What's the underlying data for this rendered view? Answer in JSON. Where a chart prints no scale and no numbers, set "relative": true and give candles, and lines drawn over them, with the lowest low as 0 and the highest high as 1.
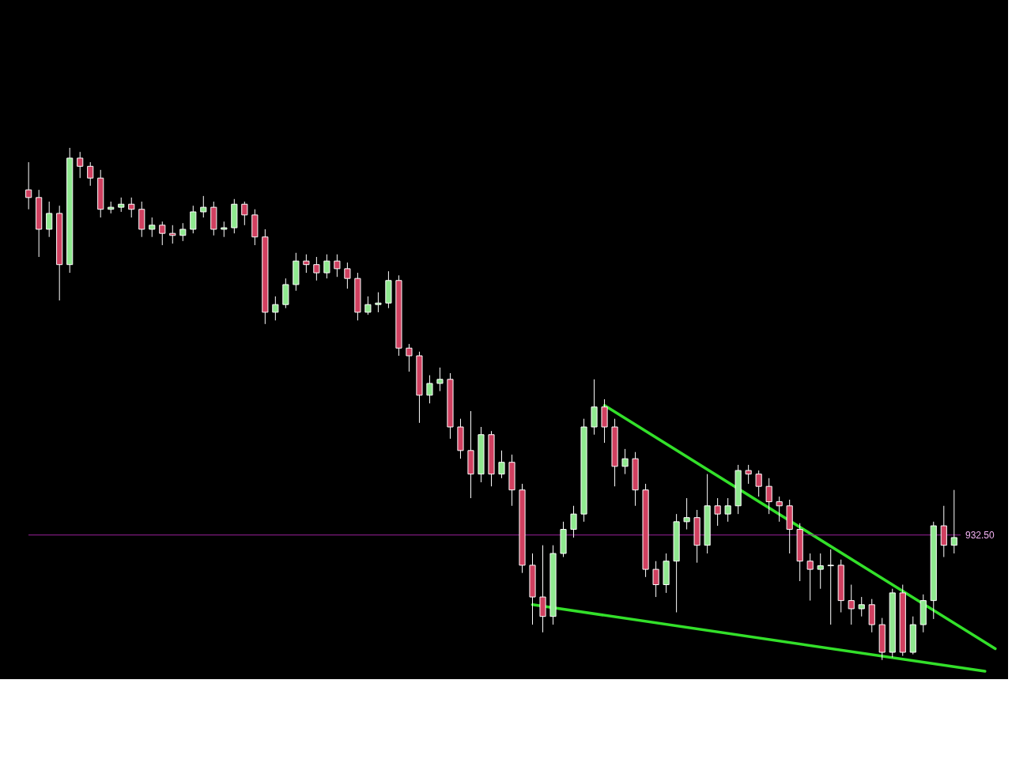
{
  "chart_data": {
    "type": "candlestick",
    "relative": true,
    "tick_labels": false,
    "categories": [
      null,
      null,
      null,
      null,
      null,
      null,
      null,
      null,
      null,
      null,
      null,
      null,
      null,
      null,
      null,
      null,
      null,
      null,
      null,
      null,
      null,
      null,
      null,
      null,
      null,
      null,
      null,
      null,
      null,
      null,
      null,
      null,
      null,
      null,
      null,
      null,
      null,
      null,
      null,
      null,
      null,
      null,
      null,
      null,
      null,
      null,
      null,
      null,
      null,
      null,
      null,
      null,
      null,
      null,
      null,
      null,
      null,
      null,
      null,
      null,
      null,
      null,
      null,
      null,
      null,
      null,
      null,
      null,
      null,
      null,
      null,
      null,
      null,
      null,
      null,
      null,
      null,
      null,
      null,
      null,
      null,
      null,
      null,
      null,
      null,
      null,
      null,
      null,
      null,
      null,
      null,
      null,
      null,
      null,
      null
    ],
    "ohlc": [
      [
        0.918,
        0.972,
        0.88,
        0.903
      ],
      [
        0.903,
        0.918,
        0.787,
        0.841
      ],
      [
        0.841,
        0.895,
        0.826,
        0.872
      ],
      [
        0.872,
        0.887,
        0.702,
        0.772
      ],
      [
        0.772,
        1.0,
        0.756,
        0.98
      ],
      [
        0.98,
        0.992,
        0.941,
        0.964
      ],
      [
        0.964,
        0.972,
        0.926,
        0.941
      ],
      [
        0.941,
        0.957,
        0.864,
        0.88
      ],
      [
        0.88,
        0.895,
        0.872,
        0.884
      ],
      [
        0.884,
        0.903,
        0.875,
        0.89
      ],
      [
        0.89,
        0.903,
        0.864,
        0.88
      ],
      [
        0.88,
        0.895,
        0.826,
        0.841
      ],
      [
        0.841,
        0.864,
        0.826,
        0.849
      ],
      [
        0.849,
        0.856,
        0.81,
        0.833
      ],
      [
        0.833,
        0.849,
        0.813,
        0.829
      ],
      [
        0.829,
        0.853,
        0.818,
        0.841
      ],
      [
        0.841,
        0.887,
        0.833,
        0.875
      ],
      [
        0.875,
        0.906,
        0.864,
        0.884
      ],
      [
        0.884,
        0.895,
        0.829,
        0.841
      ],
      [
        0.841,
        0.856,
        0.826,
        0.844
      ],
      [
        0.844,
        0.9,
        0.833,
        0.89
      ],
      [
        0.89,
        0.895,
        0.849,
        0.869
      ],
      [
        0.869,
        0.88,
        0.81,
        0.826
      ],
      [
        0.826,
        0.841,
        0.656,
        0.679
      ],
      [
        0.679,
        0.71,
        0.663,
        0.694
      ],
      [
        0.694,
        0.745,
        0.687,
        0.733
      ],
      [
        0.733,
        0.795,
        0.721,
        0.779
      ],
      [
        0.779,
        0.792,
        0.756,
        0.772
      ],
      [
        0.772,
        0.787,
        0.741,
        0.756
      ],
      [
        0.756,
        0.792,
        0.745,
        0.779
      ],
      [
        0.779,
        0.792,
        0.748,
        0.764
      ],
      [
        0.764,
        0.776,
        0.725,
        0.745
      ],
      [
        0.745,
        0.756,
        0.663,
        0.679
      ],
      [
        0.679,
        0.71,
        0.674,
        0.694
      ],
      [
        0.694,
        0.718,
        0.679,
        0.697
      ],
      [
        0.697,
        0.759,
        0.687,
        0.741
      ],
      [
        0.741,
        0.751,
        0.594,
        0.609
      ],
      [
        0.609,
        0.617,
        0.563,
        0.594
      ],
      [
        0.594,
        0.602,
        0.463,
        0.517
      ],
      [
        0.517,
        0.556,
        0.501,
        0.54
      ],
      [
        0.54,
        0.571,
        0.525,
        0.548
      ],
      [
        0.548,
        0.56,
        0.432,
        0.455
      ],
      [
        0.455,
        0.471,
        0.393,
        0.409
      ],
      [
        0.409,
        0.486,
        0.316,
        0.363
      ],
      [
        0.363,
        0.455,
        0.347,
        0.44
      ],
      [
        0.44,
        0.447,
        0.339,
        0.363
      ],
      [
        0.363,
        0.409,
        0.355,
        0.386
      ],
      [
        0.386,
        0.401,
        0.301,
        0.332
      ],
      [
        0.332,
        0.344,
        0.17,
        0.185
      ],
      [
        0.185,
        0.208,
        0.069,
        0.123
      ],
      [
        0.123,
        0.224,
        0.054,
        0.085
      ],
      [
        0.085,
        0.224,
        0.069,
        0.208
      ],
      [
        0.208,
        0.27,
        0.201,
        0.255
      ],
      [
        0.255,
        0.301,
        0.239,
        0.285
      ],
      [
        0.285,
        0.471,
        0.27,
        0.455
      ],
      [
        0.455,
        0.548,
        0.44,
        0.494
      ],
      [
        0.494,
        0.509,
        0.424,
        0.455
      ],
      [
        0.455,
        0.471,
        0.339,
        0.378
      ],
      [
        0.378,
        0.412,
        0.363,
        0.393
      ],
      [
        0.393,
        0.406,
        0.301,
        0.332
      ],
      [
        0.332,
        0.344,
        0.162,
        0.177
      ],
      [
        0.177,
        0.193,
        0.123,
        0.147
      ],
      [
        0.147,
        0.208,
        0.131,
        0.193
      ],
      [
        0.193,
        0.285,
        0.093,
        0.27
      ],
      [
        0.27,
        0.316,
        0.255,
        0.278
      ],
      [
        0.278,
        0.293,
        0.19,
        0.224
      ],
      [
        0.224,
        0.363,
        0.208,
        0.301
      ],
      [
        0.301,
        0.316,
        0.262,
        0.285
      ],
      [
        0.285,
        0.316,
        0.27,
        0.301
      ],
      [
        0.301,
        0.381,
        0.285,
        0.37
      ],
      [
        0.37,
        0.381,
        0.344,
        0.363
      ],
      [
        0.363,
        0.37,
        0.319,
        0.339
      ],
      [
        0.339,
        0.355,
        0.285,
        0.309
      ],
      [
        0.309,
        0.319,
        0.27,
        0.301
      ],
      [
        0.301,
        0.313,
        0.208,
        0.255
      ],
      [
        0.255,
        0.267,
        0.154,
        0.193
      ],
      [
        0.193,
        0.208,
        0.116,
        0.177
      ],
      [
        0.177,
        0.208,
        0.139,
        0.184
      ],
      [
        0.184,
        0.216,
        0.069,
        0.185
      ],
      [
        0.185,
        0.196,
        0.093,
        0.116
      ],
      [
        0.116,
        0.147,
        0.069,
        0.1
      ],
      [
        0.1,
        0.123,
        0.085,
        0.108
      ],
      [
        0.108,
        0.119,
        0.054,
        0.069
      ],
      [
        0.069,
        0.082,
        0.0,
        0.015
      ],
      [
        0.015,
        0.139,
        0.005,
        0.131
      ],
      [
        0.131,
        0.147,
        0.008,
        0.015
      ],
      [
        0.015,
        0.085,
        0.011,
        0.069
      ],
      [
        0.069,
        0.128,
        0.054,
        0.116
      ],
      [
        0.116,
        0.27,
        0.08,
        0.262
      ],
      [
        0.262,
        0.301,
        0.201,
        0.224
      ],
      [
        0.224,
        0.332,
        0.208,
        0.239
      ],
      null,
      null,
      null,
      null
    ],
    "colors": [
      "#d04060",
      "#d04060",
      "#8fe88f",
      "#d04060",
      "#8fe88f",
      "#d04060",
      "#d04060",
      "#d04060",
      "#8fe88f",
      "#8fe88f",
      "#d04060",
      "#d04060",
      "#8fe88f",
      "#d04060",
      "#d04060",
      "#8fe88f",
      "#8fe88f",
      "#8fe88f",
      "#d04060",
      "#8fe88f",
      "#8fe88f",
      "#d04060",
      "#d04060",
      "#d04060",
      "#8fe88f",
      "#8fe88f",
      "#8fe88f",
      "#d04060",
      "#d04060",
      "#8fe88f",
      "#d04060",
      "#d04060",
      "#d04060",
      "#8fe88f",
      "#8fe88f",
      "#8fe88f",
      "#d04060",
      "#d04060",
      "#d04060",
      "#8fe88f",
      "#8fe88f",
      "#d04060",
      "#d04060",
      "#d04060",
      "#8fe88f",
      "#d04060",
      "#8fe88f",
      "#d04060",
      "#d04060",
      "#d04060",
      "#d04060",
      "#8fe88f",
      "#8fe88f",
      "#8fe88f",
      "#8fe88f",
      "#8fe88f",
      "#d04060",
      "#d04060",
      "#8fe88f",
      "#d04060",
      "#d04060",
      "#d04060",
      "#8fe88f",
      "#8fe88f",
      "#8fe88f",
      "#d04060",
      "#8fe88f",
      "#d04060",
      "#8fe88f",
      "#8fe88f",
      "#d04060",
      "#d04060",
      "#d04060",
      "#d04060",
      "#d04060",
      "#d04060",
      "#d04060",
      "#8fe88f",
      "#8fe88f",
      "#d04060",
      "#d04060",
      "#8fe88f",
      "#d04060",
      "#d04060",
      "#8fe88f",
      "#d04060",
      "#8fe88f",
      "#8fe88f",
      "#8fe88f",
      "#d04060",
      "#8fe88f",
      null,
      null,
      null,
      null
    ],
    "series": [
      {
        "type": "line",
        "color": "#33e02a",
        "values": [
          null,
          null,
          null,
          null,
          null,
          null,
          null,
          null,
          null,
          null,
          null,
          null,
          null,
          null,
          null,
          null,
          null,
          null,
          null,
          null,
          null,
          null,
          null,
          null,
          null,
          null,
          null,
          null,
          null,
          null,
          null,
          null,
          null,
          null,
          null,
          null,
          null,
          null,
          null,
          null,
          null,
          null,
          null,
          null,
          null,
          null,
          null,
          null,
          null,
          null,
          null,
          null,
          null,
          null,
          null,
          null,
          0.497,
          null,
          null,
          null,
          null,
          null,
          null,
          null,
          null,
          null,
          null,
          null,
          null,
          null,
          null,
          null,
          null,
          null,
          null,
          null,
          null,
          null,
          null,
          null,
          null,
          null,
          null,
          null,
          null,
          null,
          null,
          null,
          null,
          null,
          null,
          null,
          null,
          null,
          0.022
        ]
      },
      {
        "type": "line",
        "color": "#33e02a",
        "values": [
          null,
          null,
          null,
          null,
          null,
          null,
          null,
          null,
          null,
          null,
          null,
          null,
          null,
          null,
          null,
          null,
          null,
          null,
          null,
          null,
          null,
          null,
          null,
          null,
          null,
          null,
          null,
          null,
          null,
          null,
          null,
          null,
          null,
          null,
          null,
          null,
          null,
          null,
          null,
          null,
          null,
          null,
          null,
          null,
          null,
          null,
          null,
          null,
          null,
          0.108,
          null,
          null,
          null,
          null,
          null,
          null,
          null,
          null,
          null,
          null,
          null,
          null,
          null,
          null,
          null,
          null,
          null,
          null,
          null,
          null,
          null,
          null,
          null,
          null,
          null,
          null,
          null,
          null,
          null,
          null,
          null,
          null,
          null,
          null,
          null,
          null,
          null,
          null,
          null,
          null,
          null,
          null,
          null,
          -0.022,
          null
        ]
      }
    ],
    "ref_lines": [
      {
        "axis": "y",
        "value": 0.244,
        "color": "#9a209a"
      }
    ],
    "annotations": [
      "932.50"
    ]
  }
}
